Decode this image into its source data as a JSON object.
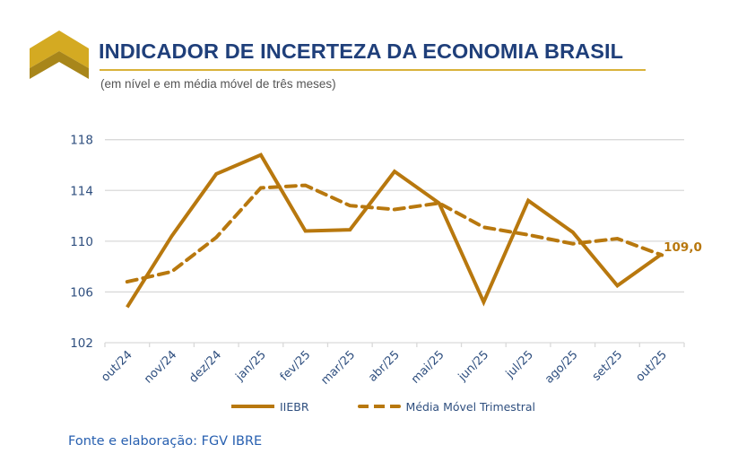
{
  "header": {
    "title": "INDICADOR DE INCERTEZA DA ECONOMIA BRASIL",
    "subtitle": "(em nível e em média móvel de três meses)",
    "logo_icon": "chevron-up-logo-icon"
  },
  "colors": {
    "series": "#B8780E",
    "title": "#1F3F7A",
    "axis_text": "#2F4F7F",
    "gridline": "#D9D9D9",
    "logo_light": "#D4AA22",
    "logo_dark": "#A8861A",
    "source": "#2860B0"
  },
  "chart_data": {
    "type": "line",
    "title": "INDICADOR DE INCERTEZA DA ECONOMIA BRASIL",
    "subtitle": "(em nível e em média móvel de três meses)",
    "xlabel": "",
    "ylabel": "",
    "categories": [
      "out/24",
      "nov/24",
      "dez/24",
      "jan/25",
      "fev/25",
      "mar/25",
      "abr/25",
      "mai/25",
      "jun/25",
      "jul/25",
      "ago/25",
      "set/25",
      "out/25"
    ],
    "series": [
      {
        "name": "IIEBR",
        "style": "solid",
        "values": [
          104.8,
          110.4,
          115.3,
          116.8,
          110.8,
          110.9,
          115.5,
          113.0,
          105.2,
          113.2,
          110.7,
          106.5,
          109.0
        ]
      },
      {
        "name": "Média Móvel Trimestral",
        "style": "dashed",
        "values": [
          106.8,
          107.6,
          110.3,
          114.2,
          114.4,
          112.8,
          112.5,
          113.0,
          111.1,
          110.5,
          109.8,
          110.2,
          108.9
        ]
      }
    ],
    "ylim": [
      102,
      118
    ],
    "yticks": [
      102,
      106,
      110,
      114,
      118
    ],
    "ytick_labels": [
      "102",
      "106",
      "110",
      "114",
      "118"
    ],
    "grid": true,
    "legend_position": "bottom",
    "annotations": [
      {
        "series": "IIEBR",
        "category": "out/25",
        "text": "109,0"
      }
    ]
  },
  "legend": {
    "items": [
      {
        "label": "IIEBR"
      },
      {
        "label": "Média Móvel Trimestral"
      }
    ]
  },
  "footer": {
    "source": "Fonte e elaboração: FGV IBRE"
  }
}
